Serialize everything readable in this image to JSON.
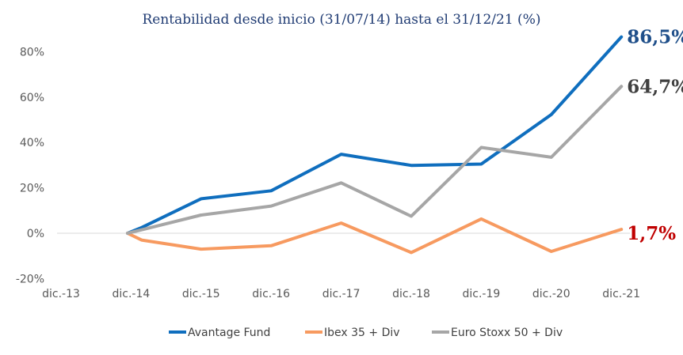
{
  "chart_data": {
    "type": "line",
    "title": "Rentabilidad desde inicio (31/07/14) hasta el 31/12/21 (%)",
    "xlabel": "",
    "ylabel": "",
    "categories": [
      "dic.-13",
      "dic.-14",
      "dic.-15",
      "dic.-16",
      "dic.-17",
      "dic.-18",
      "dic.-19",
      "dic.-20",
      "dic.-21"
    ],
    "x": [
      0,
      1,
      2,
      3,
      4,
      5,
      6,
      7,
      8
    ],
    "yticks": [
      "-20%",
      "0%",
      "20%",
      "40%",
      "60%",
      "80%"
    ],
    "ylim": [
      -20,
      80
    ],
    "grid": false,
    "legend_position": "bottom",
    "series": [
      {
        "name": "Avantage Fund",
        "color": "#0f6ebe",
        "x": [
          0.95,
          1.15,
          2.0,
          3.0,
          4.0,
          5.0,
          6.0,
          7.0,
          8.0
        ],
        "values": [
          0,
          2.5,
          15.2,
          18.7,
          34.8,
          29.9,
          30.5,
          52.3,
          86.5
        ],
        "end_label": "86,5%",
        "end_label_color": "#1f4f8a"
      },
      {
        "name": "Ibex 35 + Div",
        "color": "#f79a60",
        "x": [
          0.95,
          1.15,
          2.0,
          3.0,
          4.0,
          5.0,
          6.0,
          7.0,
          8.0
        ],
        "values": [
          0,
          -3.0,
          -7.0,
          -5.5,
          4.5,
          -8.5,
          6.3,
          -8.0,
          1.7
        ],
        "end_label": "1,7%",
        "end_label_color": "#c00000"
      },
      {
        "name": "Euro Stoxx 50 + Div",
        "color": "#a6a6a6",
        "x": [
          0.95,
          1.15,
          2.0,
          3.0,
          4.0,
          5.0,
          6.0,
          7.0,
          8.0
        ],
        "values": [
          0,
          1.5,
          8.0,
          12.0,
          22.2,
          7.5,
          37.8,
          33.5,
          64.7
        ],
        "end_label": "64,7%",
        "end_label_color": "#404040"
      }
    ]
  }
}
